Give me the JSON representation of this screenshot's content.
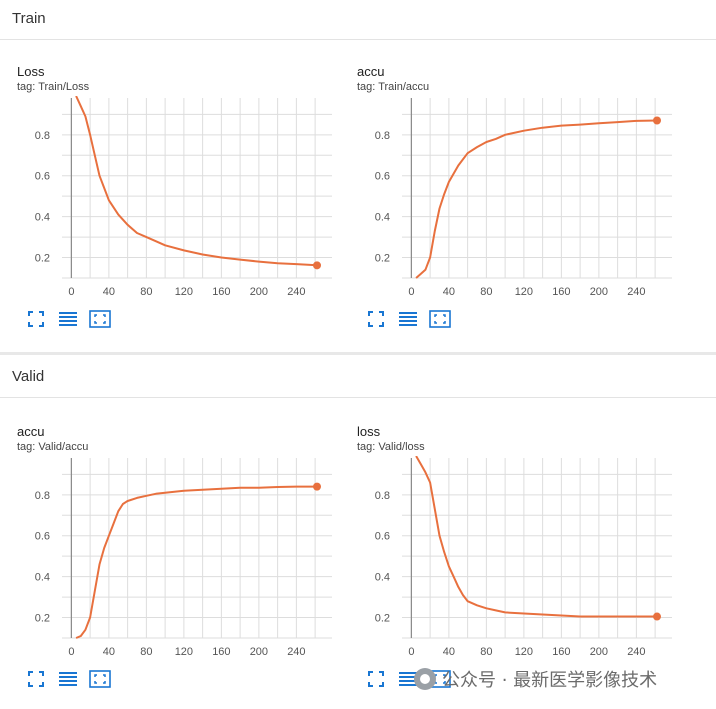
{
  "sections": [
    {
      "label": "Train",
      "cards": [
        {
          "title": "Loss",
          "tag": "tag: Train/Loss"
        },
        {
          "title": "accu",
          "tag": "tag: Train/accu"
        }
      ]
    },
    {
      "label": "Valid",
      "cards": [
        {
          "title": "accu",
          "tag": "tag: Valid/accu"
        },
        {
          "title": "loss",
          "tag": "tag: Valid/loss"
        }
      ]
    }
  ],
  "toolbar": {
    "icons": [
      "fullscreen-icon",
      "toggle-log-scale-icon",
      "fit-domain-icon"
    ]
  },
  "watermark": {
    "text": "公众号 · 最新医学影像技术"
  },
  "colors": {
    "line": "#e8703e",
    "grid": "#dddddd",
    "axis": "#8a8a8a",
    "icon": "#1976d2"
  },
  "chart_data": [
    {
      "type": "line",
      "title": "Loss",
      "subtitle": "tag: Train/Loss",
      "xticks": [
        0,
        40,
        80,
        120,
        160,
        200,
        240
      ],
      "yticks": [
        0.2,
        0.4,
        0.6,
        0.8
      ],
      "xlim": [
        -10,
        278
      ],
      "ylim": [
        0.1,
        0.98
      ],
      "x": [
        5,
        10,
        15,
        20,
        25,
        30,
        35,
        40,
        50,
        60,
        70,
        80,
        90,
        100,
        120,
        140,
        160,
        180,
        200,
        220,
        240,
        262
      ],
      "y": [
        0.99,
        0.94,
        0.89,
        0.8,
        0.7,
        0.6,
        0.54,
        0.48,
        0.41,
        0.36,
        0.32,
        0.3,
        0.28,
        0.26,
        0.235,
        0.215,
        0.2,
        0.19,
        0.18,
        0.172,
        0.168,
        0.162
      ]
    },
    {
      "type": "line",
      "title": "accu",
      "subtitle": "tag: Train/accu",
      "xticks": [
        0,
        40,
        80,
        120,
        160,
        200,
        240
      ],
      "yticks": [
        0.2,
        0.4,
        0.6,
        0.8
      ],
      "xlim": [
        -10,
        278
      ],
      "ylim": [
        0.1,
        0.98
      ],
      "x": [
        5,
        10,
        15,
        20,
        25,
        30,
        35,
        40,
        50,
        60,
        70,
        80,
        90,
        100,
        120,
        140,
        160,
        180,
        200,
        220,
        240,
        262
      ],
      "y": [
        0.1,
        0.12,
        0.14,
        0.2,
        0.33,
        0.44,
        0.51,
        0.57,
        0.65,
        0.71,
        0.74,
        0.765,
        0.78,
        0.8,
        0.82,
        0.835,
        0.845,
        0.85,
        0.857,
        0.862,
        0.868,
        0.87
      ]
    },
    {
      "type": "line",
      "title": "accu",
      "subtitle": "tag: Valid/accu",
      "xticks": [
        0,
        40,
        80,
        120,
        160,
        200,
        240
      ],
      "yticks": [
        0.2,
        0.4,
        0.6,
        0.8
      ],
      "xlim": [
        -10,
        278
      ],
      "ylim": [
        0.1,
        0.98
      ],
      "x": [
        5,
        10,
        15,
        20,
        25,
        30,
        35,
        40,
        45,
        50,
        55,
        60,
        70,
        80,
        90,
        100,
        120,
        140,
        160,
        180,
        200,
        220,
        240,
        262
      ],
      "y": [
        0.1,
        0.11,
        0.14,
        0.2,
        0.33,
        0.46,
        0.54,
        0.6,
        0.66,
        0.72,
        0.755,
        0.77,
        0.785,
        0.795,
        0.805,
        0.81,
        0.82,
        0.825,
        0.83,
        0.835,
        0.835,
        0.838,
        0.84,
        0.84
      ]
    },
    {
      "type": "line",
      "title": "loss",
      "subtitle": "tag: Valid/loss",
      "xticks": [
        0,
        40,
        80,
        120,
        160,
        200,
        240
      ],
      "yticks": [
        0.2,
        0.4,
        0.6,
        0.8
      ],
      "xlim": [
        -10,
        278
      ],
      "ylim": [
        0.1,
        0.98
      ],
      "x": [
        5,
        10,
        15,
        20,
        25,
        30,
        35,
        40,
        45,
        50,
        55,
        60,
        70,
        80,
        90,
        100,
        120,
        140,
        160,
        180,
        200,
        220,
        240,
        262
      ],
      "y": [
        0.99,
        0.95,
        0.91,
        0.86,
        0.73,
        0.6,
        0.52,
        0.45,
        0.4,
        0.35,
        0.31,
        0.28,
        0.26,
        0.245,
        0.235,
        0.225,
        0.22,
        0.215,
        0.21,
        0.205,
        0.205,
        0.205,
        0.205,
        0.205
      ]
    }
  ]
}
